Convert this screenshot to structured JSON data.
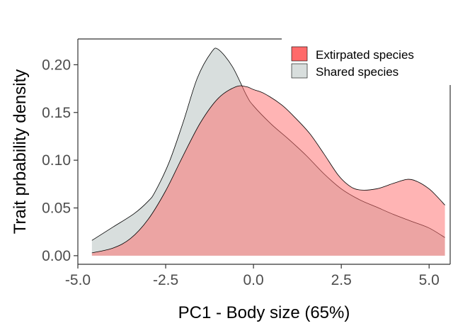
{
  "chart_data": {
    "type": "area",
    "title": "",
    "xlabel": "PC1 - Body size (65%)",
    "ylabel": "Trait prbability density",
    "xlim": [
      -5.0,
      5.6
    ],
    "ylim": [
      -0.009,
      0.227
    ],
    "x_ticks": [
      -5.0,
      -2.5,
      0.0,
      2.5,
      5.0
    ],
    "x_tick_labels": [
      "-5.0",
      "-2.5",
      "0.0",
      "2.5",
      "5.0"
    ],
    "y_ticks": [
      0.0,
      0.05,
      0.1,
      0.15,
      0.2
    ],
    "y_tick_labels": [
      "0.00",
      "0.05",
      "0.10",
      "0.15",
      "0.20"
    ],
    "grid": false,
    "legend_position": "top-right",
    "series": [
      {
        "name": "Shared species",
        "color": "#d8dedd",
        "points": [
          [
            -4.6,
            0.016
          ],
          [
            -4.0,
            0.03
          ],
          [
            -3.4,
            0.044
          ],
          [
            -3.0,
            0.057
          ],
          [
            -2.8,
            0.067
          ],
          [
            -2.4,
            0.098
          ],
          [
            -2.0,
            0.14
          ],
          [
            -1.6,
            0.186
          ],
          [
            -1.2,
            0.213
          ],
          [
            -1.0,
            0.216
          ],
          [
            -0.6,
            0.198
          ],
          [
            -0.2,
            0.168
          ],
          [
            0.0,
            0.157
          ],
          [
            0.5,
            0.138
          ],
          [
            1.0,
            0.122
          ],
          [
            1.5,
            0.105
          ],
          [
            2.0,
            0.086
          ],
          [
            2.5,
            0.07
          ],
          [
            3.0,
            0.059
          ],
          [
            3.5,
            0.051
          ],
          [
            4.0,
            0.043
          ],
          [
            4.5,
            0.036
          ],
          [
            5.0,
            0.029
          ],
          [
            5.45,
            0.019
          ]
        ]
      },
      {
        "name": "Extirpated species",
        "color": "#ff6a6a",
        "points": [
          [
            -4.6,
            0.003
          ],
          [
            -4.0,
            0.008
          ],
          [
            -3.5,
            0.018
          ],
          [
            -3.0,
            0.038
          ],
          [
            -2.5,
            0.068
          ],
          [
            -2.0,
            0.105
          ],
          [
            -1.5,
            0.14
          ],
          [
            -1.0,
            0.165
          ],
          [
            -0.5,
            0.177
          ],
          [
            -0.2,
            0.177
          ],
          [
            0.0,
            0.174
          ],
          [
            0.3,
            0.17
          ],
          [
            0.8,
            0.158
          ],
          [
            1.2,
            0.144
          ],
          [
            1.6,
            0.128
          ],
          [
            2.0,
            0.107
          ],
          [
            2.4,
            0.085
          ],
          [
            2.7,
            0.074
          ],
          [
            3.0,
            0.069
          ],
          [
            3.5,
            0.07
          ],
          [
            4.0,
            0.076
          ],
          [
            4.4,
            0.08
          ],
          [
            4.7,
            0.077
          ],
          [
            5.0,
            0.07
          ],
          [
            5.2,
            0.063
          ],
          [
            5.45,
            0.053
          ]
        ]
      }
    ]
  }
}
